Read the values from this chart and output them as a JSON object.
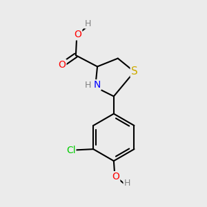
{
  "background_color": "#ebebeb",
  "bond_color": "#000000",
  "atom_colors": {
    "O": "#ff0000",
    "N": "#0000ff",
    "S": "#ccaa00",
    "Cl": "#00cc00",
    "C": "#000000",
    "H": "#808080"
  },
  "font_size": 10,
  "lw": 1.5
}
